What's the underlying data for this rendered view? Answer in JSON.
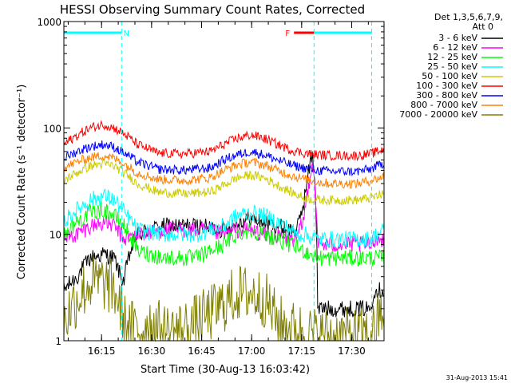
{
  "chart_data": {
    "type": "line",
    "title": "HESSI Observing Summary Count Rates, Corrected",
    "xlabel": "Start Time (30-Aug-13 16:03:42)",
    "ylabel": "Corrected Count Rate (s⁻¹ detector⁻¹)",
    "yscale": "log",
    "ylim": [
      1,
      1000
    ],
    "xlim_minutes": [
      0,
      96
    ],
    "x_ticks": [
      {
        "label": "16:15",
        "minutes": 11.3
      },
      {
        "label": "16:30",
        "minutes": 26.3
      },
      {
        "label": "16:45",
        "minutes": 41.3
      },
      {
        "label": "17:00",
        "minutes": 56.3
      },
      {
        "label": "17:15",
        "minutes": 71.3
      },
      {
        "label": "17:30",
        "minutes": 86.3
      }
    ],
    "y_ticks": [
      {
        "label": "1",
        "value": 1
      },
      {
        "label": "10",
        "value": 10
      },
      {
        "label": "100",
        "value": 100
      },
      {
        "label": "1000",
        "value": 1000
      }
    ],
    "legend": {
      "header_line1": "Det 1,3,5,6,7,9,",
      "header_line2": "Att 0",
      "placement": "right"
    },
    "annotations": [
      {
        "label": "N",
        "color": "#00ffff",
        "x_minutes_from": 0,
        "x_minutes_to": 17.3
      },
      {
        "label": "F",
        "color": "#ff0000",
        "x_minutes_from": 69,
        "x_minutes_to": 75
      }
    ],
    "segment_marks_minutes": [
      17.3,
      75,
      92.3
    ],
    "timestamp": "31-Aug-2013 15:41",
    "series": [
      {
        "name": "3 - 6 keV",
        "color": "#000000",
        "x": [
          0,
          4,
          8,
          12,
          15,
          17,
          18,
          22,
          30,
          40,
          48,
          52,
          56,
          60,
          64,
          68,
          70,
          72,
          73.5,
          74.5,
          75,
          76,
          80,
          84,
          88,
          92,
          93,
          94,
          96
        ],
        "y": [
          3,
          4,
          6,
          6.5,
          6,
          4,
          3.6,
          10,
          12,
          12,
          11,
          13,
          14,
          13,
          12,
          11,
          11,
          20,
          40,
          58,
          40,
          2,
          2,
          2,
          2,
          2,
          3,
          3,
          3
        ]
      },
      {
        "name": "6 - 12 keV",
        "color": "#ff00ff",
        "x": [
          0,
          4,
          8,
          12,
          15,
          17,
          18,
          22,
          30,
          40,
          48,
          52,
          56,
          60,
          64,
          68,
          70,
          72,
          73.5,
          74.5,
          75,
          76,
          80,
          84,
          88,
          92,
          93,
          94,
          96
        ],
        "y": [
          9,
          10,
          12,
          13,
          12,
          10,
          9,
          10,
          11,
          11,
          10,
          11,
          11,
          10,
          9.5,
          9,
          9,
          14,
          30,
          50,
          35,
          8,
          8,
          8,
          8,
          8,
          9,
          9,
          9
        ]
      },
      {
        "name": "12 - 25 keV",
        "color": "#00ff00",
        "x": [
          0,
          4,
          8,
          12,
          15,
          17,
          18,
          22,
          30,
          36,
          40,
          48,
          52,
          56,
          60,
          64,
          68,
          70,
          72,
          74,
          76,
          80,
          84,
          88,
          92,
          94,
          96
        ],
        "y": [
          10,
          13,
          16,
          17,
          15,
          13,
          12,
          7,
          6,
          6,
          6,
          8,
          10,
          11,
          10,
          9,
          8,
          7.5,
          7,
          6.5,
          6,
          6,
          6,
          6,
          6,
          6,
          6
        ]
      },
      {
        "name": "25 - 50 keV",
        "color": "#00ffff",
        "x": [
          0,
          4,
          8,
          12,
          15,
          17,
          18,
          22,
          30,
          36,
          40,
          48,
          52,
          56,
          60,
          64,
          68,
          70,
          72,
          74,
          76,
          80,
          84,
          88,
          92,
          94,
          96
        ],
        "y": [
          13,
          17,
          21,
          23,
          21,
          18,
          16,
          11,
          10,
          10,
          10,
          12,
          15,
          16,
          15,
          13,
          11,
          10,
          10,
          9.5,
          9,
          9,
          9,
          9,
          9,
          10,
          11
        ]
      },
      {
        "name": "50 - 100 keV",
        "color": "#cccc00",
        "x": [
          0,
          4,
          8,
          12,
          15,
          18,
          22,
          28,
          36,
          44,
          48,
          52,
          56,
          60,
          64,
          68,
          72,
          76,
          80,
          84,
          88,
          92,
          96
        ],
        "y": [
          32,
          38,
          44,
          46,
          44,
          38,
          30,
          25,
          24,
          25,
          29,
          34,
          36,
          34,
          29,
          25,
          22,
          21,
          21,
          21,
          21,
          22,
          24
        ]
      },
      {
        "name": "100 - 300 keV",
        "color": "#ff0000",
        "x": [
          0,
          4,
          8,
          12,
          15,
          18,
          22,
          28,
          36,
          44,
          48,
          52,
          56,
          60,
          64,
          68,
          72,
          76,
          80,
          84,
          88,
          92,
          96
        ],
        "y": [
          70,
          85,
          100,
          108,
          100,
          88,
          70,
          58,
          57,
          60,
          70,
          80,
          86,
          80,
          70,
          62,
          58,
          56,
          55,
          55,
          55,
          57,
          63
        ]
      },
      {
        "name": "300 - 800 keV",
        "color": "#0000ff",
        "x": [
          0,
          4,
          8,
          12,
          15,
          18,
          22,
          28,
          36,
          44,
          48,
          52,
          56,
          60,
          64,
          68,
          72,
          76,
          80,
          84,
          88,
          92,
          96
        ],
        "y": [
          52,
          60,
          67,
          70,
          66,
          58,
          48,
          41,
          40,
          42,
          50,
          56,
          60,
          56,
          50,
          45,
          42,
          40,
          39,
          39,
          39,
          41,
          47
        ]
      },
      {
        "name": "800 - 7000 keV",
        "color": "#ff8000",
        "x": [
          0,
          4,
          8,
          12,
          15,
          18,
          22,
          28,
          36,
          44,
          48,
          52,
          56,
          60,
          64,
          68,
          72,
          76,
          80,
          84,
          88,
          92,
          96
        ],
        "y": [
          42,
          48,
          53,
          55,
          52,
          46,
          38,
          33,
          32,
          34,
          40,
          45,
          48,
          45,
          40,
          36,
          33,
          31,
          30,
          30,
          30,
          32,
          35
        ]
      },
      {
        "name": "7000 - 20000 keV",
        "color": "#808000",
        "x": [
          0,
          2,
          4,
          6,
          8,
          12,
          15,
          17,
          18,
          22,
          26,
          30,
          36,
          40,
          44,
          48,
          52,
          56,
          60,
          62,
          64,
          68,
          72,
          76,
          80,
          84,
          88,
          92,
          94,
          96
        ],
        "y": [
          1.5,
          2,
          2.5,
          3,
          3.5,
          3.5,
          3,
          2,
          1.5,
          1.2,
          1.5,
          1.2,
          1.3,
          1.5,
          1.8,
          2.2,
          2.8,
          2.8,
          2.5,
          2,
          1.5,
          1.3,
          1.2,
          1.1,
          1.1,
          1.1,
          1.1,
          1.1,
          1.5,
          2
        ]
      }
    ]
  }
}
